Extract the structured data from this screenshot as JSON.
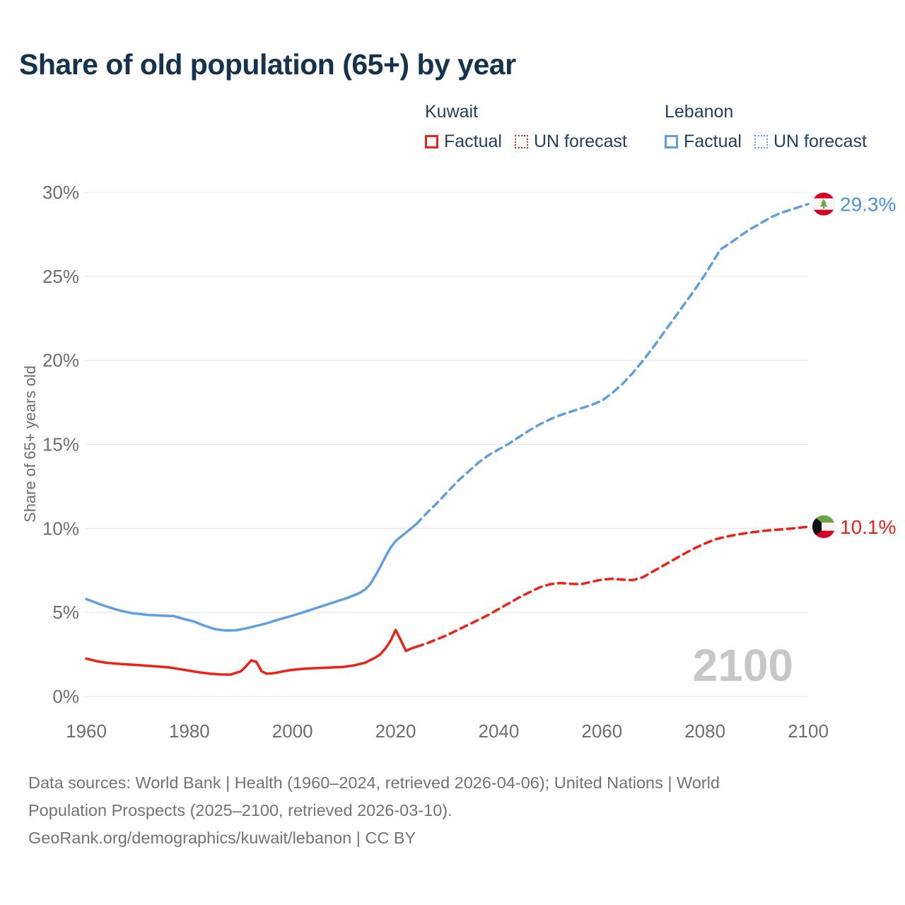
{
  "title": "Share of old population (65+) by year",
  "legend": {
    "groups": [
      {
        "name": "Kuwait",
        "color": "#ee2118",
        "items": [
          {
            "label": "Factual",
            "style": "solid"
          },
          {
            "label": "UN forecast",
            "style": "dotted"
          }
        ]
      },
      {
        "name": "Lebanon",
        "color": "#5f9fe0",
        "items": [
          {
            "label": "Factual",
            "style": "solid"
          },
          {
            "label": "UN forecast",
            "style": "dotted"
          }
        ]
      }
    ]
  },
  "chart_data": {
    "type": "line",
    "title": "Share of old population (65+) by year",
    "xlabel": "",
    "ylabel": "Share of 65+ years old",
    "xlim": [
      1960,
      2100
    ],
    "ylim": [
      0,
      30
    ],
    "grid": true,
    "watermark": "2100",
    "x_ticks": [
      1960,
      1980,
      2000,
      2020,
      2040,
      2060,
      2080,
      2100
    ],
    "y_ticks": [
      {
        "v": 0,
        "label": "0%"
      },
      {
        "v": 5,
        "label": "5%"
      },
      {
        "v": 10,
        "label": "10%"
      },
      {
        "v": 15,
        "label": "15%"
      },
      {
        "v": 20,
        "label": "20%"
      },
      {
        "v": 25,
        "label": "25%"
      },
      {
        "v": 30,
        "label": "30%"
      }
    ],
    "series": [
      {
        "name": "Lebanon Factual",
        "color": "#5f9fe0",
        "style": "solid",
        "points": [
          [
            1960,
            5.8
          ],
          [
            1963,
            5.45
          ],
          [
            1966,
            5.15
          ],
          [
            1969,
            4.95
          ],
          [
            1972,
            4.85
          ],
          [
            1975,
            4.8
          ],
          [
            1977,
            4.78
          ],
          [
            1979,
            4.6
          ],
          [
            1981,
            4.45
          ],
          [
            1983,
            4.2
          ],
          [
            1985,
            4.0
          ],
          [
            1987,
            3.92
          ],
          [
            1989,
            3.93
          ],
          [
            1991,
            4.05
          ],
          [
            1993,
            4.2
          ],
          [
            1995,
            4.35
          ],
          [
            1997,
            4.55
          ],
          [
            1999,
            4.72
          ],
          [
            2001,
            4.9
          ],
          [
            2003,
            5.1
          ],
          [
            2005,
            5.3
          ],
          [
            2007,
            5.5
          ],
          [
            2009,
            5.7
          ],
          [
            2011,
            5.9
          ],
          [
            2013,
            6.15
          ],
          [
            2014,
            6.35
          ],
          [
            2015,
            6.65
          ],
          [
            2016,
            7.15
          ],
          [
            2017,
            7.7
          ],
          [
            2018,
            8.3
          ],
          [
            2019,
            8.85
          ],
          [
            2020,
            9.25
          ],
          [
            2021,
            9.5
          ],
          [
            2022,
            9.75
          ],
          [
            2023,
            10.0
          ],
          [
            2024,
            10.25
          ]
        ]
      },
      {
        "name": "Lebanon UN forecast",
        "color": "#5f9fe0",
        "style": "dashed",
        "points": [
          [
            2024,
            10.25
          ],
          [
            2026,
            10.9
          ],
          [
            2028,
            11.5
          ],
          [
            2030,
            12.15
          ],
          [
            2032,
            12.8
          ],
          [
            2034,
            13.35
          ],
          [
            2036,
            13.9
          ],
          [
            2038,
            14.35
          ],
          [
            2040,
            14.7
          ],
          [
            2042,
            15.05
          ],
          [
            2044,
            15.45
          ],
          [
            2046,
            15.85
          ],
          [
            2048,
            16.2
          ],
          [
            2050,
            16.5
          ],
          [
            2052,
            16.75
          ],
          [
            2054,
            16.95
          ],
          [
            2056,
            17.15
          ],
          [
            2058,
            17.35
          ],
          [
            2060,
            17.6
          ],
          [
            2062,
            18.05
          ],
          [
            2064,
            18.6
          ],
          [
            2066,
            19.25
          ],
          [
            2068,
            20.0
          ],
          [
            2070,
            20.8
          ],
          [
            2072,
            21.65
          ],
          [
            2074,
            22.5
          ],
          [
            2076,
            23.35
          ],
          [
            2078,
            24.2
          ],
          [
            2080,
            25.1
          ],
          [
            2082,
            26.1
          ],
          [
            2083,
            26.6
          ],
          [
            2085,
            27.0
          ],
          [
            2087,
            27.45
          ],
          [
            2089,
            27.85
          ],
          [
            2091,
            28.2
          ],
          [
            2093,
            28.55
          ],
          [
            2095,
            28.8
          ],
          [
            2097,
            29.0
          ],
          [
            2099,
            29.2
          ],
          [
            2100,
            29.3
          ]
        ]
      },
      {
        "name": "Kuwait Factual",
        "color": "#ee2118",
        "style": "solid",
        "points": [
          [
            1960,
            2.25
          ],
          [
            1962,
            2.1
          ],
          [
            1964,
            2.0
          ],
          [
            1966,
            1.95
          ],
          [
            1968,
            1.9
          ],
          [
            1970,
            1.87
          ],
          [
            1972,
            1.82
          ],
          [
            1974,
            1.78
          ],
          [
            1976,
            1.73
          ],
          [
            1978,
            1.63
          ],
          [
            1980,
            1.53
          ],
          [
            1982,
            1.43
          ],
          [
            1984,
            1.35
          ],
          [
            1986,
            1.31
          ],
          [
            1988,
            1.3
          ],
          [
            1990,
            1.5
          ],
          [
            1991,
            1.8
          ],
          [
            1992,
            2.15
          ],
          [
            1993,
            2.05
          ],
          [
            1994,
            1.5
          ],
          [
            1995,
            1.35
          ],
          [
            1996,
            1.37
          ],
          [
            1997,
            1.42
          ],
          [
            1998,
            1.48
          ],
          [
            2000,
            1.58
          ],
          [
            2002,
            1.64
          ],
          [
            2004,
            1.68
          ],
          [
            2006,
            1.7
          ],
          [
            2008,
            1.73
          ],
          [
            2010,
            1.76
          ],
          [
            2012,
            1.85
          ],
          [
            2014,
            2.0
          ],
          [
            2016,
            2.3
          ],
          [
            2017,
            2.5
          ],
          [
            2018,
            2.85
          ],
          [
            2019,
            3.3
          ],
          [
            2020,
            3.95
          ],
          [
            2021,
            3.35
          ],
          [
            2022,
            2.7
          ],
          [
            2023,
            2.85
          ],
          [
            2024,
            2.95
          ]
        ]
      },
      {
        "name": "Kuwait UN forecast",
        "color": "#ee2118",
        "style": "dashed",
        "points": [
          [
            2024,
            2.95
          ],
          [
            2026,
            3.15
          ],
          [
            2028,
            3.4
          ],
          [
            2030,
            3.65
          ],
          [
            2032,
            3.95
          ],
          [
            2034,
            4.25
          ],
          [
            2036,
            4.55
          ],
          [
            2038,
            4.85
          ],
          [
            2040,
            5.2
          ],
          [
            2042,
            5.55
          ],
          [
            2044,
            5.9
          ],
          [
            2046,
            6.2
          ],
          [
            2048,
            6.5
          ],
          [
            2050,
            6.68
          ],
          [
            2052,
            6.75
          ],
          [
            2054,
            6.7
          ],
          [
            2056,
            6.68
          ],
          [
            2058,
            6.82
          ],
          [
            2060,
            6.95
          ],
          [
            2062,
            7.0
          ],
          [
            2064,
            6.95
          ],
          [
            2066,
            6.92
          ],
          [
            2068,
            7.1
          ],
          [
            2070,
            7.45
          ],
          [
            2072,
            7.8
          ],
          [
            2074,
            8.15
          ],
          [
            2076,
            8.5
          ],
          [
            2078,
            8.82
          ],
          [
            2080,
            9.1
          ],
          [
            2082,
            9.35
          ],
          [
            2084,
            9.5
          ],
          [
            2086,
            9.62
          ],
          [
            2088,
            9.72
          ],
          [
            2090,
            9.8
          ],
          [
            2092,
            9.87
          ],
          [
            2094,
            9.92
          ],
          [
            2096,
            9.97
          ],
          [
            2098,
            10.03
          ],
          [
            2100,
            10.1
          ]
        ]
      }
    ],
    "end_labels": [
      {
        "country": "Lebanon",
        "flag": "lebanon-flag",
        "text": "29.3%",
        "value": 29.3,
        "color": "#4a90d9"
      },
      {
        "country": "Kuwait",
        "flag": "kuwait-flag",
        "text": "10.1%",
        "value": 10.1,
        "color": "#ee2118"
      }
    ],
    "legend_position": "top-right"
  },
  "footer": {
    "lines": [
      "Data sources: World Bank | Health (1960–2024, retrieved 2026-04-06); United Nations | World",
      "Population Prospects (2025–2100, retrieved 2026-03-10).",
      "GeoRank.org/demographics/kuwait/lebanon | CC BY"
    ]
  }
}
